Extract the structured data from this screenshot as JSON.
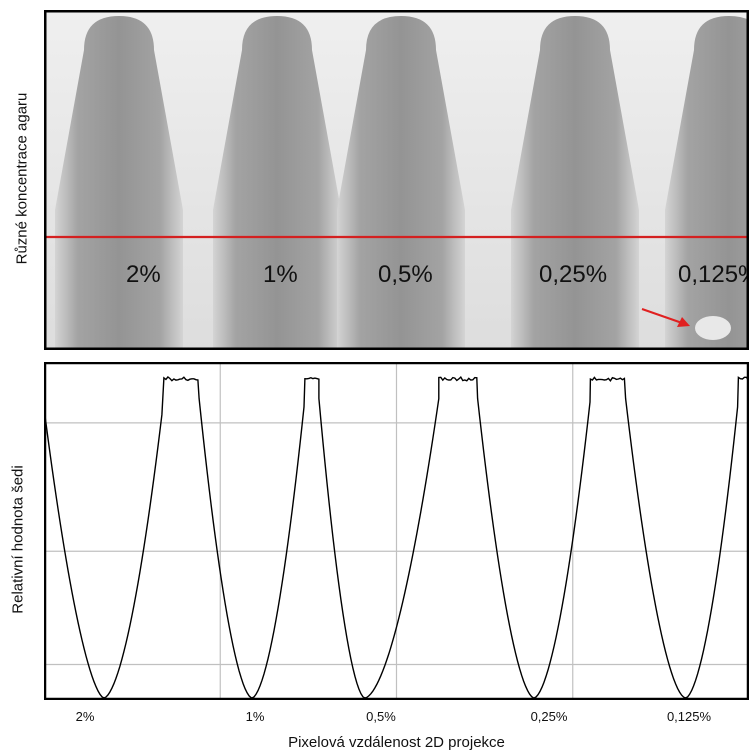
{
  "chart_data": [
    {
      "type": "image",
      "ylabel": "Různé koncentrace agaru",
      "sample_labels": [
        "2%",
        "1%",
        "0,5%",
        "0,25%",
        "0,125%"
      ],
      "colors": {
        "profile_line": "#d42020",
        "arrow": "#e02020"
      }
    },
    {
      "type": "line",
      "ylabel": "Relativní hodnota šedi",
      "xlabel": "Pixelová vzdálenost 2D projekce",
      "categories": [
        "2%",
        "1%",
        "0,5%",
        "0,25%",
        "0,125%"
      ],
      "minima_x_fraction": [
        0.085,
        0.295,
        0.455,
        0.695,
        0.91
      ],
      "plateaus_x_fraction": [
        [
          0.17,
          0.22
        ],
        [
          0.37,
          0.39
        ],
        [
          0.56,
          0.615
        ],
        [
          0.775,
          0.825
        ],
        [
          0.985,
          1.0
        ]
      ],
      "y_range": [
        0,
        1
      ],
      "grid": true,
      "colors": {
        "line": "#000000",
        "grid": "#c0c0c0"
      }
    }
  ]
}
